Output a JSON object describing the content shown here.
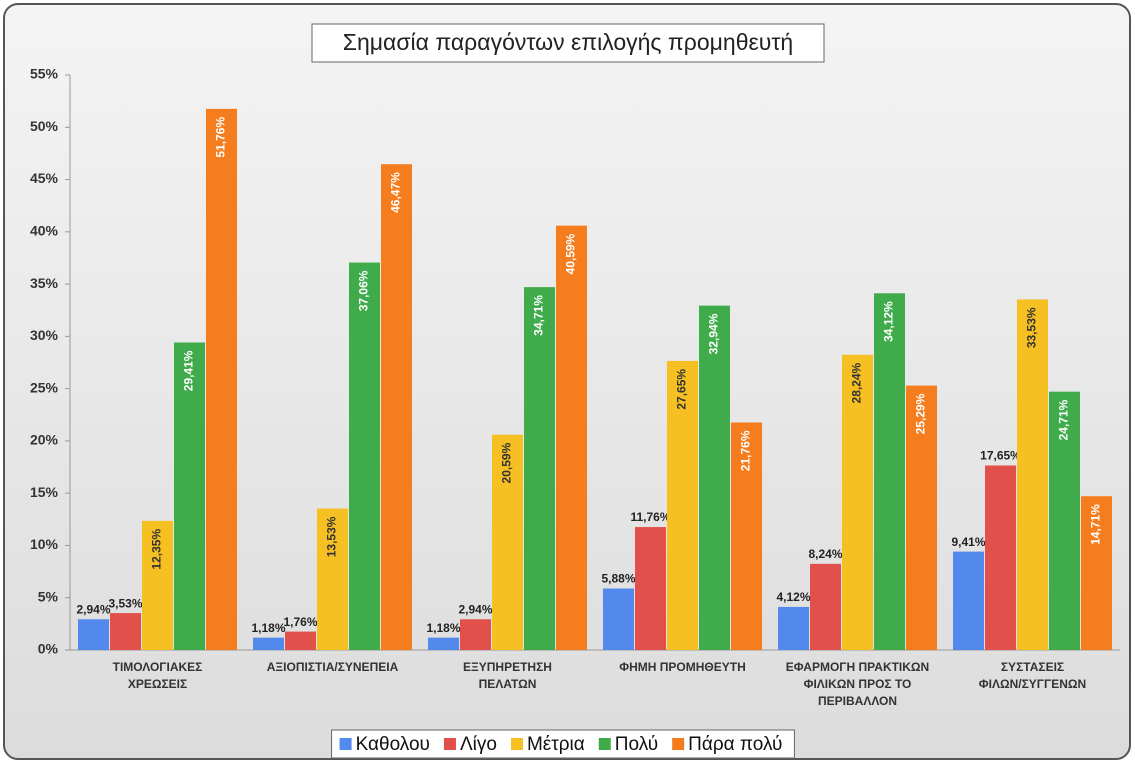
{
  "chart_data": {
    "type": "bar",
    "title": "Σημασία παραγόντων επιλογής προμηθευτή",
    "categories": [
      [
        "ΤΙΜΟΛΟΓΙΑΚΕΣ",
        "ΧΡΕΩΣΕΙΣ"
      ],
      [
        "ΑΞΙΟΠΙΣΤΙΑ/ΣΥΝΕΠΕΙΑ"
      ],
      [
        "ΕΞΥΠΗΡΕΤΗΣΗ",
        "ΠΕΛΑΤΩΝ"
      ],
      [
        "ΦΗΜΗ ΠΡΟΜΗΘΕΥΤΗ"
      ],
      [
        "ΕΦΑΡΜΟΓΗ ΠΡΑΚΤΙΚΩΝ",
        "ΦΙΛΙΚΩΝ ΠΡΟΣ ΤΟ",
        "ΠΕΡΙΒΑΛΛΟΝ"
      ],
      [
        "ΣΥΣΤΑΣΕΙΣ",
        "ΦΙΛΩΝ/ΣΥΓΓΕΝΩΝ"
      ]
    ],
    "series": [
      {
        "name": "Καθολου",
        "color": "#5389ec",
        "values": [
          2.94,
          1.18,
          1.18,
          5.88,
          4.12,
          9.41
        ],
        "value_labels": [
          "2,94%",
          "1,18%",
          "1,18%",
          "5,88%",
          "4,12%",
          "9,41%"
        ]
      },
      {
        "name": "Λίγο",
        "color": "#e2504b",
        "values": [
          3.53,
          1.76,
          2.94,
          11.76,
          8.24,
          17.65
        ],
        "value_labels": [
          "3,53%",
          "1,76%",
          "2,94%",
          "11,76%",
          "8,24%",
          "17,65%"
        ]
      },
      {
        "name": "Μέτρια",
        "color": "#f6c022",
        "values": [
          12.35,
          13.53,
          20.59,
          27.65,
          28.24,
          33.53
        ],
        "value_labels": [
          "12,35%",
          "13,53%",
          "20,59%",
          "27,65%",
          "28,24%",
          "33,53%"
        ]
      },
      {
        "name": "Πολύ",
        "color": "#3fab4b",
        "values": [
          29.41,
          37.06,
          34.71,
          32.94,
          34.12,
          24.71
        ],
        "value_labels": [
          "29,41%",
          "37,06%",
          "34,71%",
          "32,94%",
          "34,12%",
          "24,71%"
        ]
      },
      {
        "name": "Πάρα πολύ",
        "color": "#f57d1e",
        "values": [
          51.76,
          46.47,
          40.59,
          21.76,
          25.29,
          14.71
        ],
        "value_labels": [
          "51,76%",
          "46,47%",
          "40,59%",
          "21,76%",
          "25,29%",
          "14,71%"
        ]
      }
    ],
    "ylim": [
      0,
      55
    ],
    "yticks": [
      {
        "value": 0,
        "label": "0%"
      },
      {
        "value": 5,
        "label": "5%"
      },
      {
        "value": 10,
        "label": "10%"
      },
      {
        "value": 15,
        "label": "15%"
      },
      {
        "value": 20,
        "label": "20%"
      },
      {
        "value": 25,
        "label": "25%"
      },
      {
        "value": 30,
        "label": "30%"
      },
      {
        "value": 35,
        "label": "35%"
      },
      {
        "value": 40,
        "label": "40%"
      },
      {
        "value": 45,
        "label": "45%"
      },
      {
        "value": 50,
        "label": "50%"
      },
      {
        "value": 55,
        "label": "55%"
      }
    ],
    "grid": false,
    "legend": "bottom"
  }
}
